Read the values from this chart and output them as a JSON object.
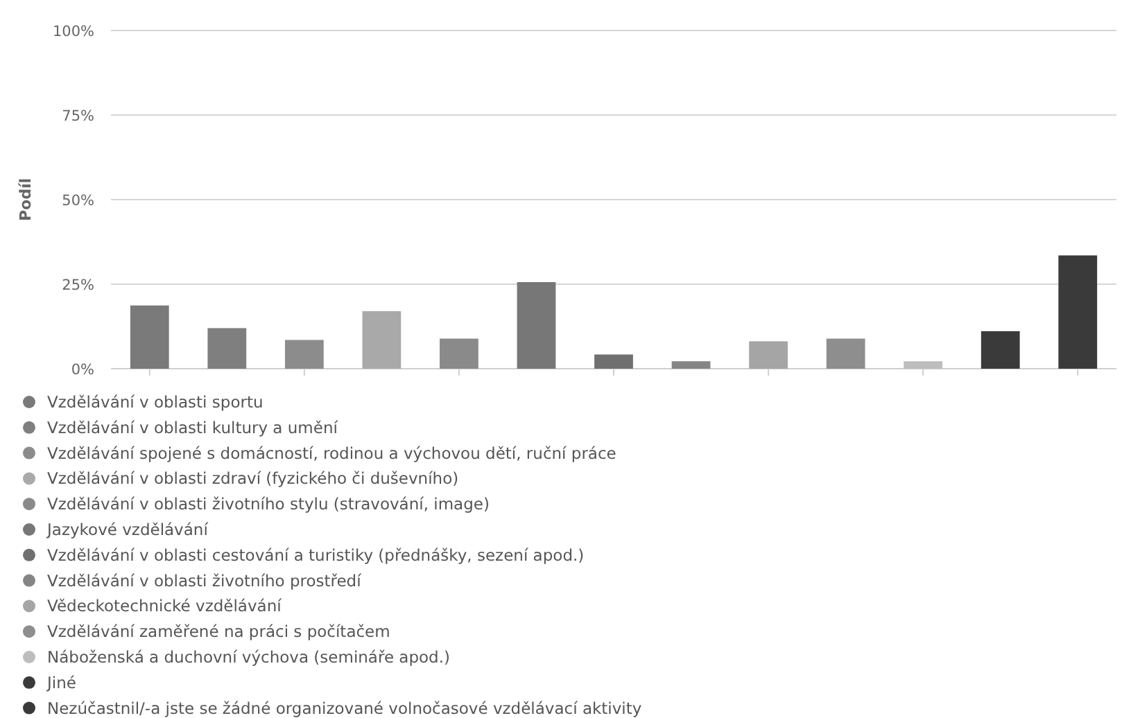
{
  "chart_data": {
    "type": "bar",
    "ylabel": "Podíl",
    "categories": [
      null
    ],
    "ylim": [
      0,
      100
    ],
    "yticks": [
      {
        "value": 0,
        "label": "0%"
      },
      {
        "value": 25,
        "label": "25%"
      },
      {
        "value": 50,
        "label": "50%"
      },
      {
        "value": 75,
        "label": "75%"
      },
      {
        "value": 100,
        "label": "100%"
      }
    ],
    "grid": "y",
    "legend": "bottom",
    "series": [
      {
        "name": "Vzdělávání v oblasti sportu",
        "color": "#7a7a7a",
        "values": [
          18.7
        ]
      },
      {
        "name": "Vzdělávání v oblasti kultury a umění",
        "color": "#7f7f7f",
        "values": [
          12
        ]
      },
      {
        "name": "Vzdělávání spojené s domácností, rodinou a výchovou dětí, ruční práce",
        "color": "#8c8c8c",
        "values": [
          8.5
        ]
      },
      {
        "name": "Vzdělávání v oblasti zdraví (fyzického či duševního)",
        "color": "#a9a9a9",
        "values": [
          17
        ]
      },
      {
        "name": "Vzdělávání v oblasti životního stylu (stravování, image)",
        "color": "#8a8a8a",
        "values": [
          8.9
        ]
      },
      {
        "name": "Jazykové vzdělávání",
        "color": "#777777",
        "values": [
          25.6
        ]
      },
      {
        "name": "Vzdělávání v oblasti cestování a turistiky (přednášky, sezení apod.)",
        "color": "#707070",
        "values": [
          4.2
        ]
      },
      {
        "name": "Vzdělávání v oblasti životního prostředí",
        "color": "#858585",
        "values": [
          2.2
        ]
      },
      {
        "name": "Vědeckotechnické vzdělávání",
        "color": "#a5a5a5",
        "values": [
          8.1
        ]
      },
      {
        "name": "Vzdělávání zaměřené na práci s počítačem",
        "color": "#8e8e8e",
        "values": [
          8.9
        ]
      },
      {
        "name": "Náboženská a duchovní výchova (semináře apod.)",
        "color": "#bdbdbd",
        "values": [
          2.2
        ]
      },
      {
        "name": "Jiné",
        "color": "#3a3a3a",
        "values": [
          11.1
        ]
      },
      {
        "name": "Nezúčastnil/-a jste se žádné organizované volnočasové vzdělávací aktivity",
        "color": "#3a3a3a",
        "values": [
          33.5
        ]
      }
    ]
  }
}
